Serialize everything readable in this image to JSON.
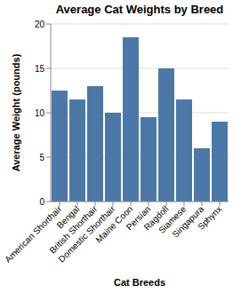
{
  "chart_data": {
    "type": "bar",
    "title": "Average Cat Weights by Breed",
    "x_label": "Cat Breeds",
    "y_label": "Average Weight (pounds)",
    "categories": [
      "American Shorthair",
      "Bengal",
      "British Shorthair",
      "Domestic Shorthair",
      "Maine Coon",
      "Persian",
      "Ragdoll",
      "Siamese",
      "Singapura",
      "Sphynx"
    ],
    "values": [
      12.5,
      11.5,
      13,
      10,
      18.5,
      9.5,
      15,
      11.5,
      6,
      9
    ],
    "color": "#4c78a8",
    "ylim": [
      0,
      20
    ],
    "yticks": [
      0,
      5,
      10,
      15,
      20
    ],
    "grid": true
  }
}
